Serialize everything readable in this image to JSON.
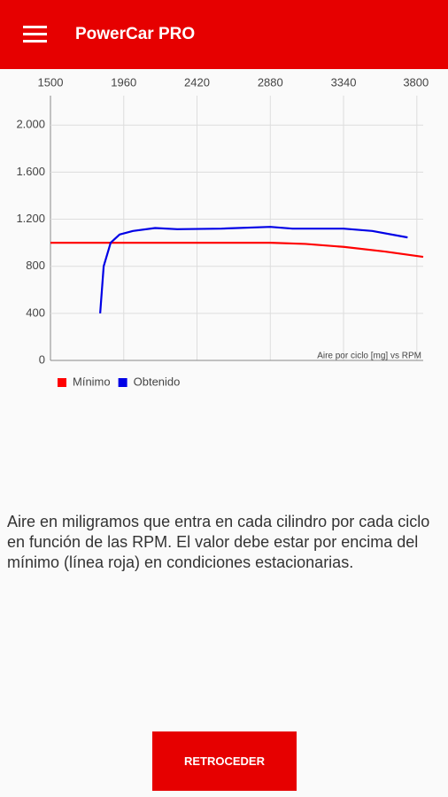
{
  "header": {
    "title": "PowerCar PRO"
  },
  "chart_data": {
    "type": "line",
    "annotation": "Aire por ciclo [mg] vs RPM",
    "xlim": [
      1500,
      3840
    ],
    "xticks": [
      1500,
      1960,
      2420,
      2880,
      3340,
      3800
    ],
    "ylim": [
      0,
      2250
    ],
    "yticks": [
      0,
      400,
      800,
      {
        "value": 1200,
        "label": "1.200"
      },
      {
        "value": 1600,
        "label": "1.600"
      },
      {
        "value": 2000,
        "label": "2.000"
      }
    ],
    "grid": true,
    "legend": "bottom-left",
    "series": [
      {
        "name": "Mínimo",
        "color": "#ff0000",
        "x": [
          1500,
          2880,
          3100,
          3340,
          3600,
          3840
        ],
        "values": [
          1000,
          1000,
          990,
          965,
          925,
          880
        ]
      },
      {
        "name": "Obtenido",
        "color": "#0000e6",
        "x": [
          1812,
          1834,
          1878,
          1934,
          2018,
          2157,
          2296,
          2574,
          2880,
          3020,
          3340,
          3520,
          3742
        ],
        "values": [
          400,
          800,
          1000,
          1070,
          1100,
          1125,
          1115,
          1120,
          1135,
          1120,
          1120,
          1100,
          1045
        ]
      }
    ]
  },
  "description": "Aire en miligramos que entra en cada cilindro por cada ciclo en función de las RPM. El valor debe estar por encima del mínimo (línea roja) en condiciones estacionarias.",
  "button": "RETROCEDER"
}
